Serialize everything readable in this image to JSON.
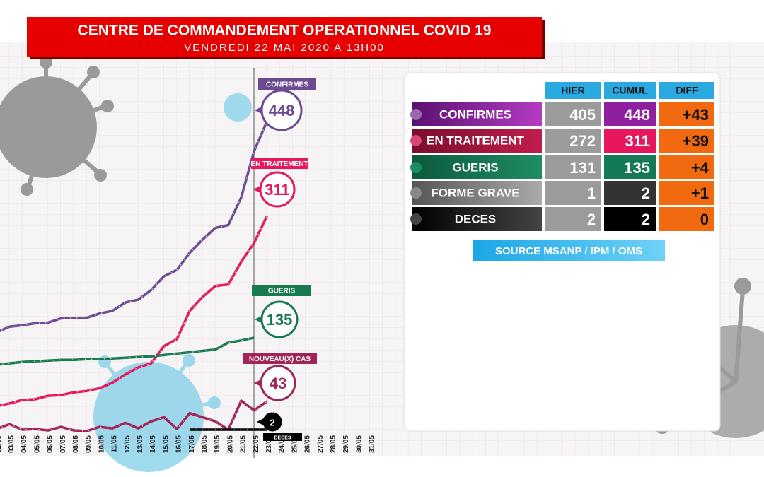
{
  "title": "CENTRE DE COMMANDEMENT OPERATIONNEL COVID 19",
  "subtitle": "VENDREDI 22 MAI 2020 A 13H00",
  "chart_data": {
    "type": "line",
    "categories": [
      "01/05",
      "02/05",
      "03/05",
      "04/05",
      "05/05",
      "06/05",
      "07/05",
      "08/05",
      "09/05",
      "10/05",
      "11/05",
      "12/05",
      "13/05",
      "14/05",
      "15/05",
      "16/05",
      "17/05",
      "18/05",
      "19/05",
      "20/05",
      "21/05",
      "22/05",
      "23/05",
      "24/05",
      "25/05",
      "26/05",
      "27/05",
      "28/05",
      "29/05",
      "30/05",
      "31/05"
    ],
    "ylim": [
      0,
      460
    ],
    "series": [
      {
        "name": "CONFIRMES",
        "color": "#6b4a91",
        "values": [
          139,
          143,
          151,
          153,
          156,
          157,
          163,
          164,
          164,
          170,
          174,
          186,
          190,
          204,
          224,
          233,
          258,
          277,
          294,
          298,
          338,
          405,
          448,
          null,
          null,
          null,
          null,
          null,
          null,
          null,
          null
        ]
      },
      {
        "name": "EN TRAITEMENT",
        "color": "#e5185c",
        "values": [
          33,
          36,
          40,
          45,
          46,
          51,
          52,
          56,
          58,
          62,
          70,
          82,
          92,
          98,
          123,
          133,
          174,
          194,
          210,
          212,
          245,
          272,
          311,
          null,
          null,
          null,
          null,
          null,
          null,
          null,
          null
        ]
      },
      {
        "name": "GUERIS",
        "color": "#1a7a4f",
        "values": [
          94,
          96,
          98,
          100,
          101,
          102,
          103,
          103,
          104,
          104,
          105,
          106,
          107,
          108,
          110,
          112,
          114,
          116,
          118,
          128,
          131,
          135,
          null,
          null,
          null,
          null,
          null,
          null,
          null,
          null,
          null
        ]
      },
      {
        "name": "NOUVEAU(X) CAS",
        "color": "#a02456",
        "values": [
          1,
          3,
          10,
          2,
          3,
          1,
          6,
          1,
          0,
          6,
          4,
          12,
          4,
          14,
          20,
          3,
          26,
          20,
          14,
          2,
          44,
          30,
          43,
          null,
          null,
          null,
          null,
          null,
          null,
          null,
          null
        ]
      },
      {
        "name": "DECES",
        "color": "#000000",
        "values": [
          null,
          null,
          null,
          null,
          null,
          null,
          null,
          null,
          null,
          null,
          null,
          null,
          null,
          null,
          null,
          null,
          2,
          2,
          2,
          2,
          2,
          2,
          2,
          null,
          null,
          null,
          null,
          null,
          null,
          null,
          null
        ]
      }
    ]
  },
  "table": {
    "header": [
      "HIER",
      "CUMUL",
      "DIFF"
    ],
    "rows": [
      [
        "CONFIRMES",
        405,
        448,
        "+43"
      ],
      [
        "EN TRAITEMENT",
        272,
        311,
        "+39"
      ],
      [
        "GUERIS",
        131,
        135,
        "+4"
      ],
      [
        "FORME GRAVE",
        1,
        2,
        "+1"
      ],
      [
        "DECES",
        2,
        2,
        "0"
      ]
    ],
    "source": "SOURCE MSANP / IPM / OMS"
  }
}
